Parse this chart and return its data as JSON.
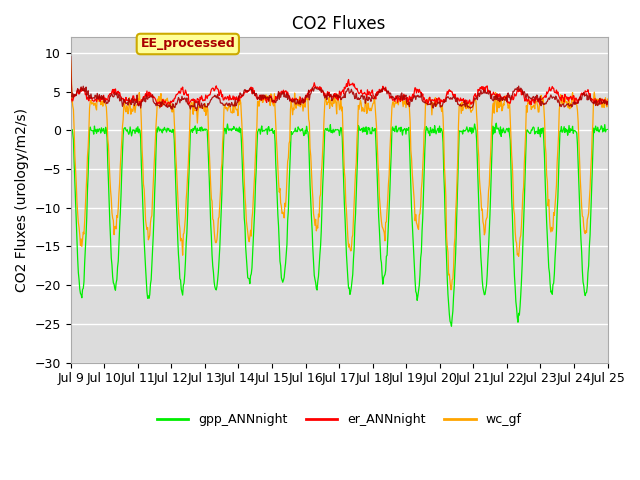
{
  "title": "CO2 Fluxes",
  "ylabel": "CO2 Fluxes (urology/m2/s)",
  "ylim": [
    -30,
    12
  ],
  "yticks": [
    -30,
    -25,
    -20,
    -15,
    -10,
    -5,
    0,
    5,
    10
  ],
  "plot_bg_color": "#dcdcdc",
  "fig_bg_color": "#ffffff",
  "grid_color": "#ffffff",
  "gpp_color": "#00ee00",
  "er_color": "#ff0000",
  "wc_color": "#ffa500",
  "ee_color": "#aa0000",
  "annotation_text": "EE_processed",
  "annotation_bg": "#ffff99",
  "annotation_border": "#ccaa00",
  "legend_labels": [
    "gpp_ANNnight",
    "er_ANNnight",
    "wc_gf"
  ],
  "n_days": 16,
  "points_per_day": 48,
  "title_fontsize": 12,
  "label_fontsize": 10,
  "tick_fontsize": 9,
  "line_width": 0.9
}
